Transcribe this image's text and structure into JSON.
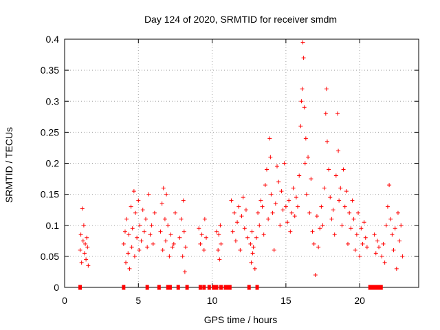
{
  "chart_data": {
    "type": "scatter",
    "title": "Day 124 of 2020, SRMTID for receiver smdm",
    "xlabel": "GPS time / hours",
    "ylabel": "SRMTID / TECUs",
    "xlim": [
      0,
      24
    ],
    "ylim": [
      0,
      0.4
    ],
    "x_ticks": [
      0,
      5,
      10,
      15,
      20
    ],
    "y_ticks": [
      0,
      0.05,
      0.1,
      0.15,
      0.2,
      0.25,
      0.3,
      0.35,
      0.4
    ],
    "x_tick_labels": [
      "0",
      "5",
      "10",
      "15",
      "20"
    ],
    "y_tick_labels": [
      "0",
      "0.05",
      "0.1",
      "0.15",
      "0.2",
      "0.25",
      "0.3",
      "0.35",
      "0.4"
    ],
    "grid": true,
    "marker": "+",
    "color": "#ff0000",
    "series": [
      {
        "name": "SRMTID",
        "points": [
          [
            1.05,
            0.06
          ],
          [
            1.1,
            0.085
          ],
          [
            1.15,
            0.04
          ],
          [
            1.2,
            0.127
          ],
          [
            1.25,
            0.075
          ],
          [
            1.3,
            0.1
          ],
          [
            1.35,
            0.055
          ],
          [
            1.4,
            0.07
          ],
          [
            1.45,
            0.045
          ],
          [
            1.5,
            0.08
          ],
          [
            1.55,
            0.065
          ],
          [
            1.6,
            0.035
          ],
          [
            4.0,
            0.07
          ],
          [
            4.1,
            0.09
          ],
          [
            4.15,
            0.04
          ],
          [
            4.2,
            0.11
          ],
          [
            4.3,
            0.055
          ],
          [
            4.35,
            0.085
          ],
          [
            4.4,
            0.03
          ],
          [
            4.5,
            0.13
          ],
          [
            4.55,
            0.065
          ],
          [
            4.6,
            0.095
          ],
          [
            4.7,
            0.155
          ],
          [
            4.75,
            0.05
          ],
          [
            4.8,
            0.12
          ],
          [
            4.9,
            0.08
          ],
          [
            5.0,
            0.14
          ],
          [
            5.05,
            0.06
          ],
          [
            5.1,
            0.1
          ],
          [
            5.2,
            0.075
          ],
          [
            5.3,
            0.125
          ],
          [
            5.4,
            0.09
          ],
          [
            5.5,
            0.11
          ],
          [
            5.6,
            0.065
          ],
          [
            5.7,
            0.15
          ],
          [
            5.8,
            0.085
          ],
          [
            5.9,
            0.1
          ],
          [
            6.0,
            0.07
          ],
          [
            6.1,
            0.12
          ],
          [
            6.5,
            0.09
          ],
          [
            6.6,
            0.135
          ],
          [
            6.65,
            0.06
          ],
          [
            6.7,
            0.16
          ],
          [
            6.8,
            0.11
          ],
          [
            6.85,
            0.075
          ],
          [
            6.9,
            0.15
          ],
          [
            7.0,
            0.1
          ],
          [
            7.1,
            0.05
          ],
          [
            7.2,
            0.085
          ],
          [
            7.3,
            0.065
          ],
          [
            7.4,
            0.07
          ],
          [
            7.5,
            0.12
          ],
          [
            7.8,
            0.08
          ],
          [
            7.9,
            0.11
          ],
          [
            8.0,
            0.05
          ],
          [
            8.05,
            0.14
          ],
          [
            8.1,
            0.09
          ],
          [
            8.15,
            0.025
          ],
          [
            8.2,
            0.065
          ],
          [
            9.1,
            0.095
          ],
          [
            9.2,
            0.07
          ],
          [
            9.3,
            0.085
          ],
          [
            9.45,
            0.06
          ],
          [
            9.5,
            0.11
          ],
          [
            9.6,
            0.08
          ],
          [
            10.3,
            0.09
          ],
          [
            10.4,
            0.06
          ],
          [
            10.45,
            0.085
          ],
          [
            10.5,
            0.045
          ],
          [
            10.55,
            0.1
          ],
          [
            10.6,
            0.07
          ],
          [
            11.3,
            0.14
          ],
          [
            11.4,
            0.09
          ],
          [
            11.5,
            0.12
          ],
          [
            11.6,
            0.075
          ],
          [
            11.7,
            0.105
          ],
          [
            11.8,
            0.13
          ],
          [
            11.9,
            0.06
          ],
          [
            12.0,
            0.115
          ],
          [
            12.1,
            0.145
          ],
          [
            12.2,
            0.095
          ],
          [
            12.3,
            0.125
          ],
          [
            12.4,
            0.08
          ],
          [
            12.6,
            0.07
          ],
          [
            12.65,
            0.04
          ],
          [
            12.7,
            0.09
          ],
          [
            12.75,
            0.055
          ],
          [
            12.8,
            0.065
          ],
          [
            12.9,
            0.03
          ],
          [
            13.0,
            0.08
          ],
          [
            13.1,
            0.12
          ],
          [
            13.2,
            0.1
          ],
          [
            13.3,
            0.14
          ],
          [
            13.4,
            0.13
          ],
          [
            13.5,
            0.085
          ],
          [
            13.6,
            0.165
          ],
          [
            13.7,
            0.19
          ],
          [
            13.8,
            0.11
          ],
          [
            13.9,
            0.24
          ],
          [
            13.95,
            0.21
          ],
          [
            14.0,
            0.15
          ],
          [
            14.1,
            0.12
          ],
          [
            14.2,
            0.06
          ],
          [
            14.3,
            0.135
          ],
          [
            14.4,
            0.195
          ],
          [
            14.5,
            0.17
          ],
          [
            14.6,
            0.1
          ],
          [
            14.7,
            0.155
          ],
          [
            14.8,
            0.125
          ],
          [
            14.9,
            0.2
          ],
          [
            15.0,
            0.13
          ],
          [
            15.1,
            0.105
          ],
          [
            15.2,
            0.14
          ],
          [
            15.3,
            0.09
          ],
          [
            15.4,
            0.12
          ],
          [
            15.5,
            0.16
          ],
          [
            15.6,
            0.115
          ],
          [
            15.7,
            0.145
          ],
          [
            15.8,
            0.13
          ],
          [
            15.9,
            0.18
          ],
          [
            16.0,
            0.26
          ],
          [
            16.05,
            0.3
          ],
          [
            16.1,
            0.32
          ],
          [
            16.15,
            0.395
          ],
          [
            16.2,
            0.37
          ],
          [
            16.25,
            0.29
          ],
          [
            16.3,
            0.2
          ],
          [
            16.35,
            0.24
          ],
          [
            16.4,
            0.15
          ],
          [
            16.5,
            0.21
          ],
          [
            16.6,
            0.12
          ],
          [
            16.7,
            0.175
          ],
          [
            16.8,
            0.09
          ],
          [
            16.9,
            0.07
          ],
          [
            17.0,
            0.02
          ],
          [
            17.1,
            0.115
          ],
          [
            17.2,
            0.065
          ],
          [
            17.3,
            0.095
          ],
          [
            17.4,
            0.13
          ],
          [
            17.5,
            0.1
          ],
          [
            17.6,
            0.16
          ],
          [
            17.7,
            0.28
          ],
          [
            17.75,
            0.32
          ],
          [
            17.8,
            0.235
          ],
          [
            17.9,
            0.19
          ],
          [
            18.0,
            0.145
          ],
          [
            18.1,
            0.11
          ],
          [
            18.2,
            0.125
          ],
          [
            18.3,
            0.085
          ],
          [
            18.4,
            0.18
          ],
          [
            18.5,
            0.28
          ],
          [
            18.55,
            0.22
          ],
          [
            18.6,
            0.14
          ],
          [
            18.7,
            0.16
          ],
          [
            18.8,
            0.1
          ],
          [
            18.9,
            0.19
          ],
          [
            19.0,
            0.13
          ],
          [
            19.1,
            0.155
          ],
          [
            19.2,
            0.07
          ],
          [
            19.3,
            0.12
          ],
          [
            19.4,
            0.095
          ],
          [
            19.5,
            0.14
          ],
          [
            19.6,
            0.11
          ],
          [
            19.7,
            0.06
          ],
          [
            19.8,
            0.085
          ],
          [
            19.9,
            0.12
          ],
          [
            20.0,
            0.05
          ],
          [
            20.1,
            0.095
          ],
          [
            20.2,
            0.07
          ],
          [
            20.3,
            0.105
          ],
          [
            20.4,
            0.08
          ],
          [
            20.5,
            0.065
          ],
          [
            21.0,
            0.085
          ],
          [
            21.1,
            0.055
          ],
          [
            21.2,
            0.075
          ],
          [
            21.3,
            0.065
          ],
          [
            21.5,
            0.05
          ],
          [
            21.6,
            0.07
          ],
          [
            21.7,
            0.04
          ],
          [
            21.8,
            0.1
          ],
          [
            21.9,
            0.13
          ],
          [
            22.0,
            0.165
          ],
          [
            22.1,
            0.11
          ],
          [
            22.2,
            0.085
          ],
          [
            22.3,
            0.06
          ],
          [
            22.4,
            0.095
          ],
          [
            22.5,
            0.03
          ],
          [
            22.6,
            0.12
          ],
          [
            22.7,
            0.075
          ],
          [
            22.8,
            0.1
          ],
          [
            22.9,
            0.05
          ]
        ]
      }
    ],
    "zero_markers_x": [
      1.05,
      4.0,
      5.6,
      6.4,
      7.0,
      7.15,
      7.7,
      8.3,
      9.2,
      9.45,
      9.8,
      10.1,
      10.3,
      10.6,
      10.9,
      11.05,
      11.2,
      12.5,
      13.05,
      20.7,
      20.9,
      21.0,
      21.1,
      21.2,
      21.3,
      21.45
    ]
  }
}
